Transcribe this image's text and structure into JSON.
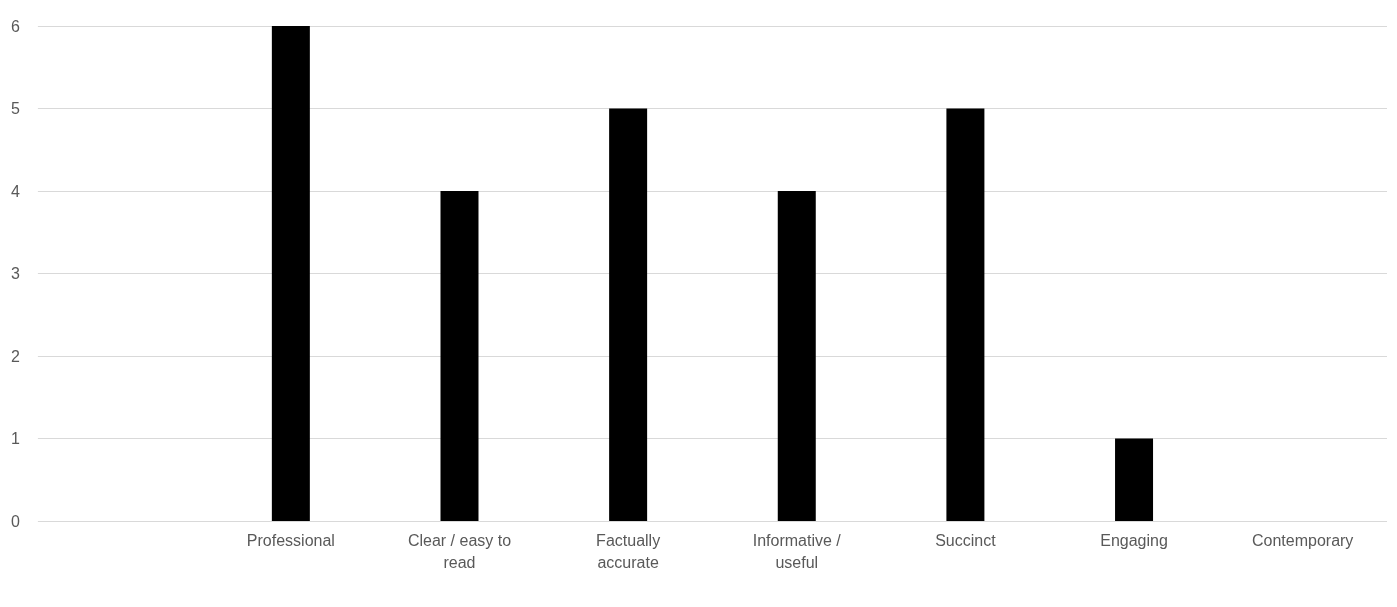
{
  "chart_data": {
    "type": "bar",
    "categories": [
      null,
      "Professional",
      "Clear / easy to read",
      "Factually accurate",
      "Informative / useful",
      "Succinct",
      "Engaging",
      "Contemporary"
    ],
    "values": [
      null,
      6,
      4,
      5,
      4,
      5,
      1,
      0
    ],
    "color": "#000000",
    "ylim": [
      0,
      6
    ],
    "yticks": [
      0,
      1,
      2,
      3,
      4,
      5,
      6
    ],
    "grid": "y"
  }
}
